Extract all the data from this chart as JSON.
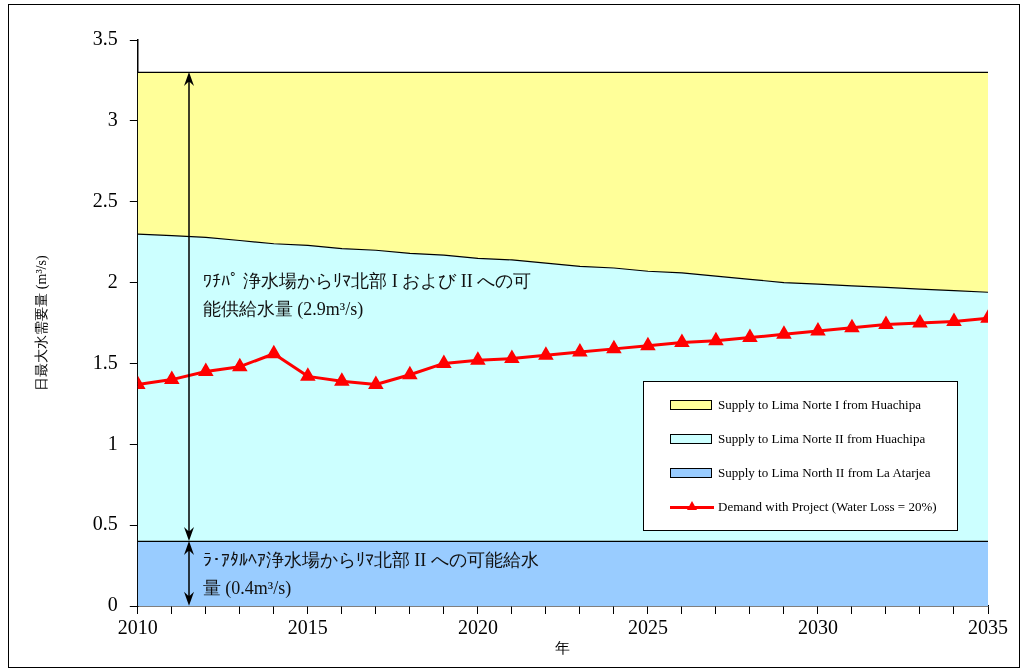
{
  "chart_data": {
    "type": "area",
    "stacked": true,
    "x": [
      2010,
      2011,
      2012,
      2013,
      2014,
      2015,
      2016,
      2017,
      2018,
      2019,
      2020,
      2021,
      2022,
      2023,
      2024,
      2025,
      2026,
      2027,
      2028,
      2029,
      2030,
      2031,
      2032,
      2033,
      2034,
      2035
    ],
    "xlabel": "年",
    "ylabel": "日最大水需要量 (m³/s)",
    "legend": "bottom right",
    "xlim": [
      2010,
      2035
    ],
    "ylim": [
      0,
      3.5
    ],
    "xticks": [
      2010,
      {
        "value": 2011,
        "label": null
      },
      {
        "value": 2012,
        "label": null
      },
      {
        "value": 2013,
        "label": null
      },
      {
        "value": 2014,
        "label": null
      },
      2015,
      {
        "value": 2016,
        "label": null
      },
      {
        "value": 2017,
        "label": null
      },
      {
        "value": 2018,
        "label": null
      },
      {
        "value": 2019,
        "label": null
      },
      2020,
      {
        "value": 2021,
        "label": null
      },
      {
        "value": 2022,
        "label": null
      },
      {
        "value": 2023,
        "label": null
      },
      {
        "value": 2024,
        "label": null
      },
      2025,
      {
        "value": 2026,
        "label": null
      },
      {
        "value": 2027,
        "label": null
      },
      {
        "value": 2028,
        "label": null
      },
      {
        "value": 2029,
        "label": null
      },
      2030,
      {
        "value": 2031,
        "label": null
      },
      {
        "value": 2032,
        "label": null
      },
      {
        "value": 2033,
        "label": null
      },
      {
        "value": 2034,
        "label": null
      },
      2035
    ],
    "yticks": [
      0,
      0.5,
      1,
      1.5,
      2,
      2.5,
      3,
      3.5
    ],
    "series": [
      {
        "name": "Supply to Lima North II from La Atarjea",
        "color": "#99ccff",
        "values": [
          0.4,
          0.4,
          0.4,
          0.4,
          0.4,
          0.4,
          0.4,
          0.4,
          0.4,
          0.4,
          0.4,
          0.4,
          0.4,
          0.4,
          0.4,
          0.4,
          0.4,
          0.4,
          0.4,
          0.4,
          0.4,
          0.4,
          0.4,
          0.4,
          0.4,
          0.4
        ]
      },
      {
        "name": "Supply to Lima Norte II from Huachipa",
        "color": "#ccffff",
        "values": [
          1.9,
          1.89,
          1.88,
          1.86,
          1.84,
          1.83,
          1.81,
          1.8,
          1.78,
          1.77,
          1.75,
          1.74,
          1.72,
          1.7,
          1.69,
          1.67,
          1.66,
          1.64,
          1.62,
          1.6,
          1.59,
          1.58,
          1.57,
          1.56,
          1.55,
          1.54
        ]
      },
      {
        "name": "Supply to Lima Norte I from Huachipa",
        "color": "#ffff99",
        "values": [
          1.0,
          1.01,
          1.02,
          1.04,
          1.06,
          1.07,
          1.09,
          1.1,
          1.12,
          1.13,
          1.15,
          1.16,
          1.18,
          1.2,
          1.21,
          1.23,
          1.24,
          1.26,
          1.28,
          1.3,
          1.31,
          1.32,
          1.33,
          1.34,
          1.35,
          1.36
        ]
      },
      {
        "name": "Demand with Project (Water Loss = 20%)",
        "type": "line",
        "marker": "triangle",
        "color": "#ff0000",
        "values": [
          1.37,
          1.4,
          1.45,
          1.48,
          1.56,
          1.42,
          1.39,
          1.37,
          1.43,
          1.5,
          1.52,
          1.53,
          1.55,
          1.57,
          1.59,
          1.61,
          1.63,
          1.64,
          1.66,
          1.68,
          1.7,
          1.72,
          1.74,
          1.75,
          1.76,
          1.78
        ]
      }
    ],
    "annotations": [
      "ﾜﾁﾊﾟ 浄水場からﾘﾏ北部 I および II への可能供給水量 (2.9m³/s)",
      {
        "text": "ﾗ･ｱﾀﾙﾍｱ浄水場からﾘﾏ北部 II への可能給水量 (0.4m³/s)",
        "x": 2011.5,
        "y": 0.4
      }
    ]
  }
}
